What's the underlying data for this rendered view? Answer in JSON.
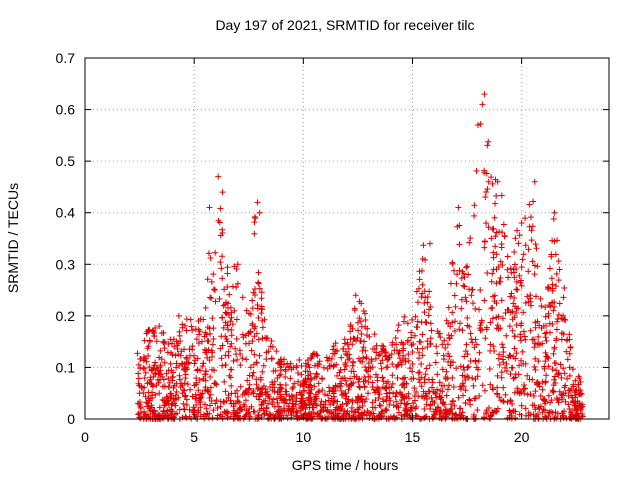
{
  "chart_data": {
    "type": "scatter",
    "title": "Day 197 of 2021, SRMTID for receiver tilc",
    "xlabel": "GPS time / hours",
    "ylabel": "SRMTID / TECUs",
    "xlim": [
      0,
      24
    ],
    "ylim": [
      0,
      0.7
    ],
    "xticks": [
      0,
      5,
      10,
      15,
      20
    ],
    "yticks": [
      0,
      0.1,
      0.2,
      0.3,
      0.4,
      0.5,
      0.6,
      0.7
    ],
    "grid": true,
    "marker": "+",
    "colors": {
      "series": "#e00000",
      "grid": "#a0a0a0",
      "axes": "#000000"
    },
    "envelope": {
      "hours": [
        2.4,
        3.0,
        3.5,
        4.0,
        4.5,
        5.0,
        5.5,
        5.8,
        6.1,
        6.5,
        7.0,
        7.5,
        7.8,
        8.2,
        8.6,
        9.0,
        9.5,
        10.0,
        10.5,
        11.0,
        11.5,
        12.0,
        12.5,
        13.0,
        13.5,
        14.0,
        14.5,
        15.0,
        15.5,
        16.0,
        16.5,
        17.0,
        17.5,
        18.0,
        18.2,
        18.6,
        19.0,
        19.5,
        20.0,
        20.5,
        21.0,
        21.5,
        22.0,
        22.4,
        22.8
      ],
      "peak": [
        0.14,
        0.18,
        0.18,
        0.15,
        0.2,
        0.19,
        0.2,
        0.42,
        0.47,
        0.3,
        0.3,
        0.2,
        0.43,
        0.2,
        0.15,
        0.12,
        0.12,
        0.12,
        0.13,
        0.13,
        0.15,
        0.16,
        0.24,
        0.2,
        0.15,
        0.14,
        0.2,
        0.21,
        0.34,
        0.18,
        0.16,
        0.41,
        0.3,
        0.58,
        0.63,
        0.5,
        0.47,
        0.35,
        0.38,
        0.46,
        0.2,
        0.4,
        0.25,
        0.1,
        0.08
      ]
    },
    "pointCount": 2300,
    "series": [
      {
        "name": "SRMTID",
        "points": [
          [
            2.5,
            0.05
          ],
          [
            2.7,
            0.12
          ],
          [
            3.1,
            0.17
          ],
          [
            3.4,
            0.18
          ],
          [
            4.3,
            0.2
          ],
          [
            5.2,
            0.19
          ],
          [
            5.7,
            0.41
          ],
          [
            6.1,
            0.47
          ],
          [
            6.3,
            0.44
          ],
          [
            7.0,
            0.3
          ],
          [
            7.9,
            0.42
          ],
          [
            8.0,
            0.4
          ],
          [
            9.5,
            0.03
          ],
          [
            12.4,
            0.24
          ],
          [
            15.8,
            0.34
          ],
          [
            17.1,
            0.41
          ],
          [
            18.0,
            0.57
          ],
          [
            18.3,
            0.63
          ],
          [
            18.2,
            0.61
          ],
          [
            18.9,
            0.46
          ],
          [
            20.0,
            0.38
          ],
          [
            20.6,
            0.46
          ],
          [
            21.5,
            0.4
          ],
          [
            22.2,
            0.1
          ],
          [
            22.7,
            0.05
          ]
        ]
      }
    ]
  }
}
